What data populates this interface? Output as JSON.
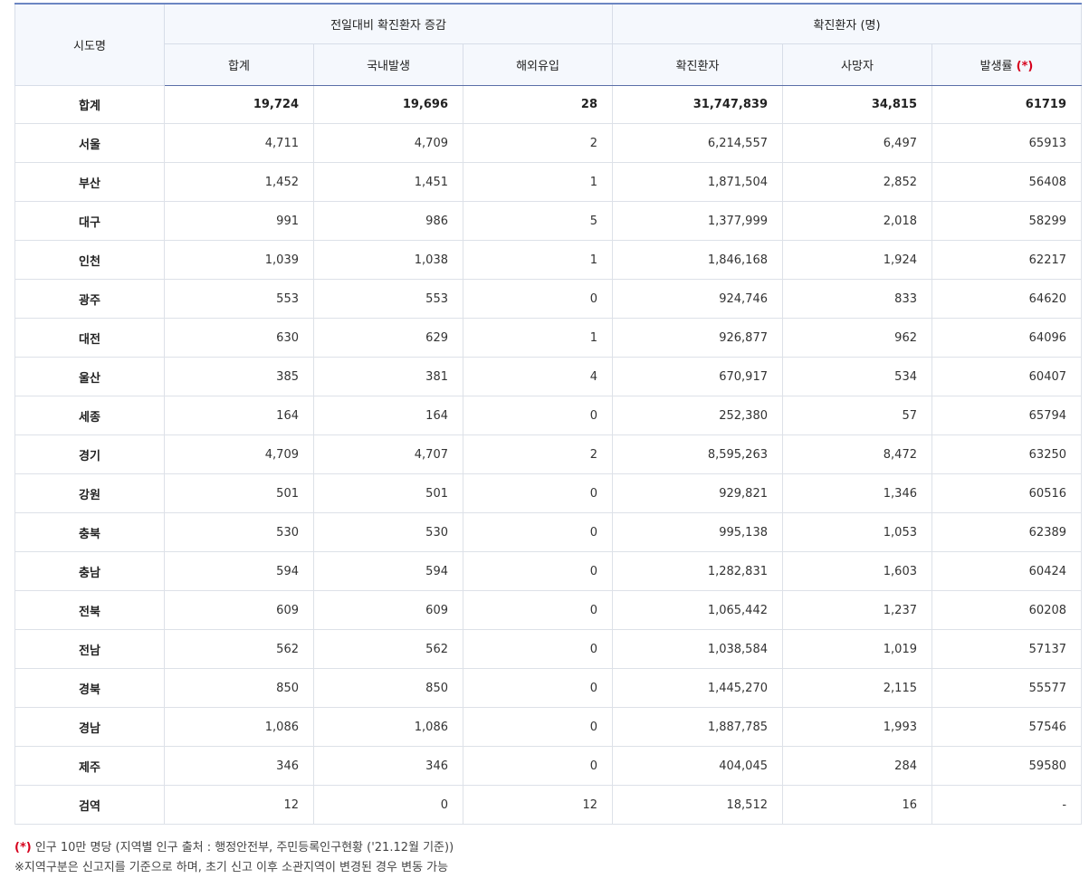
{
  "header": {
    "region_col": "시도명",
    "group1": "전일대비 확진환자 증감",
    "group2": "확진환자 (명)",
    "sub": [
      "합계",
      "국내발생",
      "해외유입",
      "확진환자",
      "사망자",
      "발생률"
    ],
    "rate_marker": "(*)"
  },
  "total_row": {
    "region": "합계",
    "values": [
      "19,724",
      "19,696",
      "28",
      "31,747,839",
      "34,815",
      "61719"
    ]
  },
  "rows": [
    {
      "region": "서울",
      "values": [
        "4,711",
        "4,709",
        "2",
        "6,214,557",
        "6,497",
        "65913"
      ]
    },
    {
      "region": "부산",
      "values": [
        "1,452",
        "1,451",
        "1",
        "1,871,504",
        "2,852",
        "56408"
      ]
    },
    {
      "region": "대구",
      "values": [
        "991",
        "986",
        "5",
        "1,377,999",
        "2,018",
        "58299"
      ]
    },
    {
      "region": "인천",
      "values": [
        "1,039",
        "1,038",
        "1",
        "1,846,168",
        "1,924",
        "62217"
      ]
    },
    {
      "region": "광주",
      "values": [
        "553",
        "553",
        "0",
        "924,746",
        "833",
        "64620"
      ]
    },
    {
      "region": "대전",
      "values": [
        "630",
        "629",
        "1",
        "926,877",
        "962",
        "64096"
      ]
    },
    {
      "region": "울산",
      "values": [
        "385",
        "381",
        "4",
        "670,917",
        "534",
        "60407"
      ]
    },
    {
      "region": "세종",
      "values": [
        "164",
        "164",
        "0",
        "252,380",
        "57",
        "65794"
      ]
    },
    {
      "region": "경기",
      "values": [
        "4,709",
        "4,707",
        "2",
        "8,595,263",
        "8,472",
        "63250"
      ]
    },
    {
      "region": "강원",
      "values": [
        "501",
        "501",
        "0",
        "929,821",
        "1,346",
        "60516"
      ]
    },
    {
      "region": "충북",
      "values": [
        "530",
        "530",
        "0",
        "995,138",
        "1,053",
        "62389"
      ]
    },
    {
      "region": "충남",
      "values": [
        "594",
        "594",
        "0",
        "1,282,831",
        "1,603",
        "60424"
      ]
    },
    {
      "region": "전북",
      "values": [
        "609",
        "609",
        "0",
        "1,065,442",
        "1,237",
        "60208"
      ]
    },
    {
      "region": "전남",
      "values": [
        "562",
        "562",
        "0",
        "1,038,584",
        "1,019",
        "57137"
      ]
    },
    {
      "region": "경북",
      "values": [
        "850",
        "850",
        "0",
        "1,445,270",
        "2,115",
        "55577"
      ]
    },
    {
      "region": "경남",
      "values": [
        "1,086",
        "1,086",
        "0",
        "1,887,785",
        "1,993",
        "57546"
      ]
    },
    {
      "region": "제주",
      "values": [
        "346",
        "346",
        "0",
        "404,045",
        "284",
        "59580"
      ]
    },
    {
      "region": "검역",
      "values": [
        "12",
        "0",
        "12",
        "18,512",
        "16",
        "-"
      ]
    }
  ],
  "notes": {
    "line1_marker": "(*)",
    "line1_text": " 인구 10만 명당 (지역별 인구 출처 : 행정안전부, 주민등록인구현황 ('21.12월 기준))",
    "line2_text": "※지역구분은 신고지를 기준으로 하며, 초기 신고 이후 소관지역이 변경된 경우 변동 가능"
  },
  "colors": {
    "accent_border": "#6b86c2",
    "header_bg": "#f5f8fd",
    "marker_red": "#d6001c"
  }
}
